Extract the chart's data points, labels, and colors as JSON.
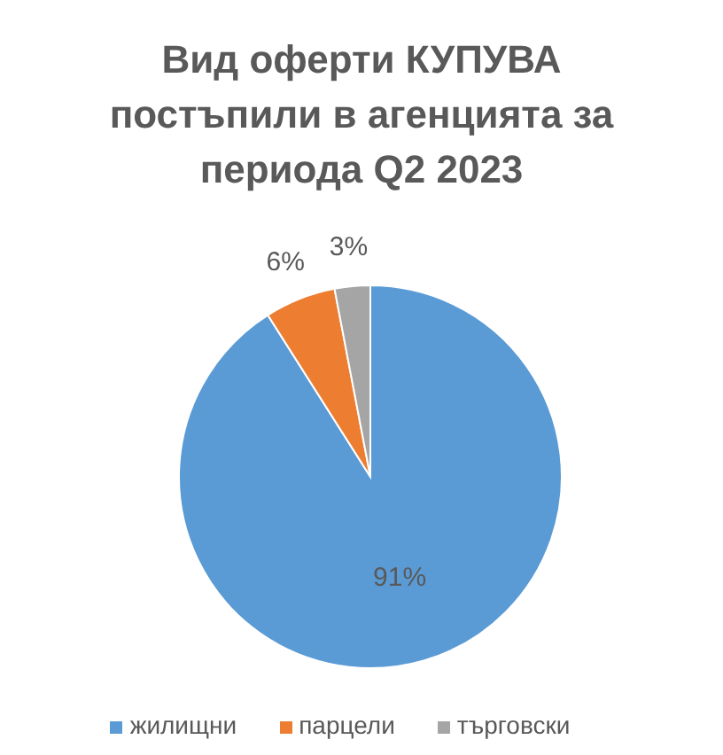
{
  "chart_data": {
    "type": "pie",
    "title": "Вид оферти КУПУВА постъпили в агенцията за периода Q2 2023",
    "categories": [
      "жилищни",
      "парцели",
      "търговски"
    ],
    "values": [
      91,
      6,
      3
    ],
    "colors": [
      "#5b9bd5",
      "#ed7d31",
      "#a5a5a5"
    ],
    "value_labels": [
      "91%",
      "6%",
      "3%"
    ],
    "legend": "bottom"
  }
}
